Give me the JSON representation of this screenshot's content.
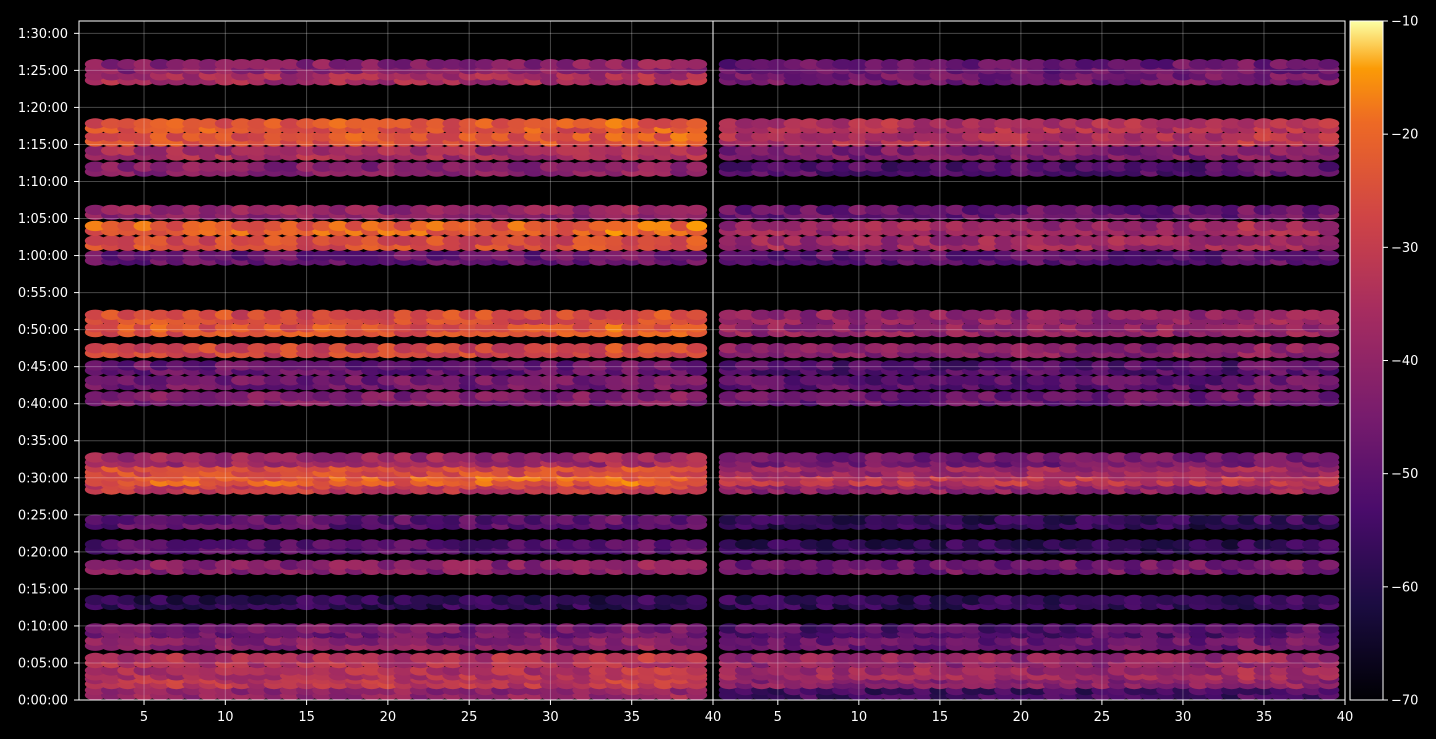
{
  "chart_data": {
    "type": "heatmap",
    "title": "",
    "xlabel": "",
    "ylabel": "",
    "grid": true,
    "panels": 2,
    "x_range": [
      1,
      40
    ],
    "x_ticks": [
      5,
      10,
      15,
      20,
      25,
      30,
      35,
      40
    ],
    "y_range_seconds": [
      0,
      5500
    ],
    "y_ticks": [
      "0:00:00",
      "0:05:00",
      "0:10:00",
      "0:15:00",
      "0:20:00",
      "0:25:00",
      "0:30:00",
      "0:35:00",
      "0:40:00",
      "0:45:00",
      "0:50:00",
      "0:55:00",
      "1:00:00",
      "1:05:00",
      "1:10:00",
      "1:15:00",
      "1:20:00",
      "1:25:00",
      "1:30:00"
    ],
    "colormap": "inferno",
    "colorbar": {
      "range": [
        -70,
        -10
      ],
      "ticks": [
        "−10",
        "−20",
        "−30",
        "−40",
        "−50",
        "−60",
        "−70"
      ],
      "tick_values": [
        -10,
        -20,
        -30,
        -40,
        -50,
        -60,
        -70
      ]
    },
    "bands": [
      {
        "t": 60,
        "left": -40,
        "right": -55
      },
      {
        "t": 150,
        "left": -32,
        "right": -42
      },
      {
        "t": 220,
        "left": -34,
        "right": -38
      },
      {
        "t": 320,
        "left": -34,
        "right": -40
      },
      {
        "t": 460,
        "left": -42,
        "right": -48
      },
      {
        "t": 560,
        "left": -46,
        "right": -52
      },
      {
        "t": 790,
        "left": -58,
        "right": -58
      },
      {
        "t": 1075,
        "left": -42,
        "right": -46
      },
      {
        "t": 1240,
        "left": -52,
        "right": -58
      },
      {
        "t": 1440,
        "left": -50,
        "right": -58
      },
      {
        "t": 1725,
        "left": -30,
        "right": -40
      },
      {
        "t": 1790,
        "left": -22,
        "right": -32
      },
      {
        "t": 1865,
        "left": -26,
        "right": -38
      },
      {
        "t": 1945,
        "left": -38,
        "right": -46
      },
      {
        "t": 2440,
        "left": -44,
        "right": -48
      },
      {
        "t": 2570,
        "left": -46,
        "right": -50
      },
      {
        "t": 2690,
        "left": -48,
        "right": -52
      },
      {
        "t": 2830,
        "left": -28,
        "right": -42
      },
      {
        "t": 3000,
        "left": -24,
        "right": -40
      },
      {
        "t": 3100,
        "left": -26,
        "right": -40
      },
      {
        "t": 3580,
        "left": -48,
        "right": -50
      },
      {
        "t": 3700,
        "left": -26,
        "right": -38
      },
      {
        "t": 3820,
        "left": -22,
        "right": -38
      },
      {
        "t": 3950,
        "left": -40,
        "right": -48
      },
      {
        "t": 4300,
        "left": -42,
        "right": -52
      },
      {
        "t": 4430,
        "left": -36,
        "right": -44
      },
      {
        "t": 4545,
        "left": -24,
        "right": -34
      },
      {
        "t": 4650,
        "left": -24,
        "right": -34
      },
      {
        "t": 5040,
        "left": -36,
        "right": -46
      },
      {
        "t": 5130,
        "left": -42,
        "right": -48
      }
    ]
  }
}
